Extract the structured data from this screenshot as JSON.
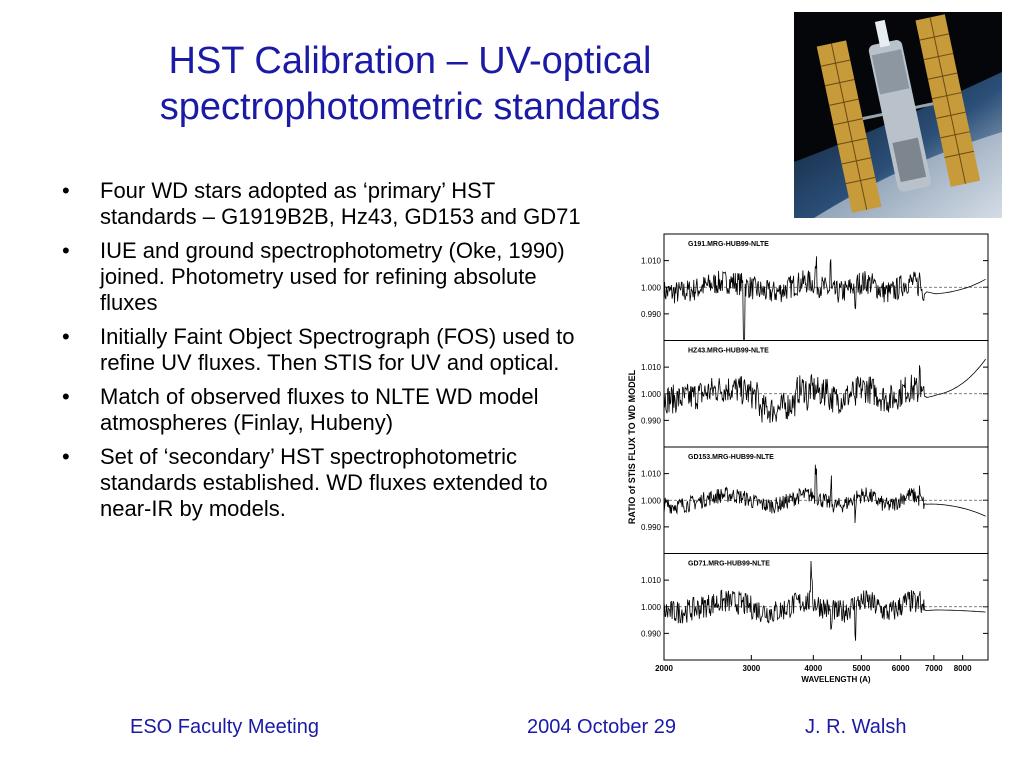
{
  "slide": {
    "title_line1": "HST Calibration – UV-optical",
    "title_line2": "spectrophotometric standards",
    "bullets": [
      "Four WD stars adopted as ‘primary’ HST standards – G1919B2B, Hz43, GD153 and GD71",
      "IUE and ground spectrophotometry (Oke, 1990) joined. Photometry used for refining absolute fluxes",
      "Initially Faint Object Spectrograph (FOS) used to refine UV fluxes. Then STIS for UV and optical.",
      "Match of observed fluxes to NLTE WD model atmospheres (Finlay, Hubeny)",
      "Set of ‘secondary’ HST spectrophotometric standards established. WD fluxes extended to near-IR by models."
    ],
    "bullet_symbol": "•",
    "footer_left": "ESO Faculty Meeting",
    "footer_center": "2004 October 29",
    "footer_right": "J. R. Walsh",
    "photo_icon": "hubble-telescope-photo"
  },
  "colors": {
    "title": "#1a1aa6",
    "footer": "#1a1aa6",
    "text": "#000000"
  },
  "chart_data": {
    "type": "line",
    "ylabel": "RATIO of STIS FLUX TO WD MODEL",
    "xlabel": "WAVELENGTH (A)",
    "xlim": [
      2000,
      9000
    ],
    "x_scale": "log",
    "x_ticks": [
      "2000",
      "3000",
      "4000",
      "5000",
      "6000",
      "7000",
      "8000"
    ],
    "panels": [
      {
        "name": "G191.MRG-HUB99-NLTE",
        "ylim": [
          0.98,
          1.02
        ],
        "y_ticks": [
          "1.010",
          "1.000",
          "0.990"
        ],
        "reference": 1.0
      },
      {
        "name": "HZ43.MRG-HUB99-NLTE",
        "ylim": [
          0.98,
          1.02
        ],
        "y_ticks": [
          "1.010",
          "1.000",
          "0.990"
        ],
        "reference": 1.0
      },
      {
        "name": "GD153.MRG-HUB99-NLTE",
        "ylim": [
          0.98,
          1.02
        ],
        "y_ticks": [
          "1.010",
          "1.000",
          "0.990"
        ],
        "reference": 1.0
      },
      {
        "name": "GD71.MRG-HUB99-NLTE",
        "ylim": [
          0.98,
          1.02
        ],
        "y_ticks": [
          "1.010",
          "1.000",
          "0.990"
        ],
        "reference": 1.0
      }
    ]
  }
}
